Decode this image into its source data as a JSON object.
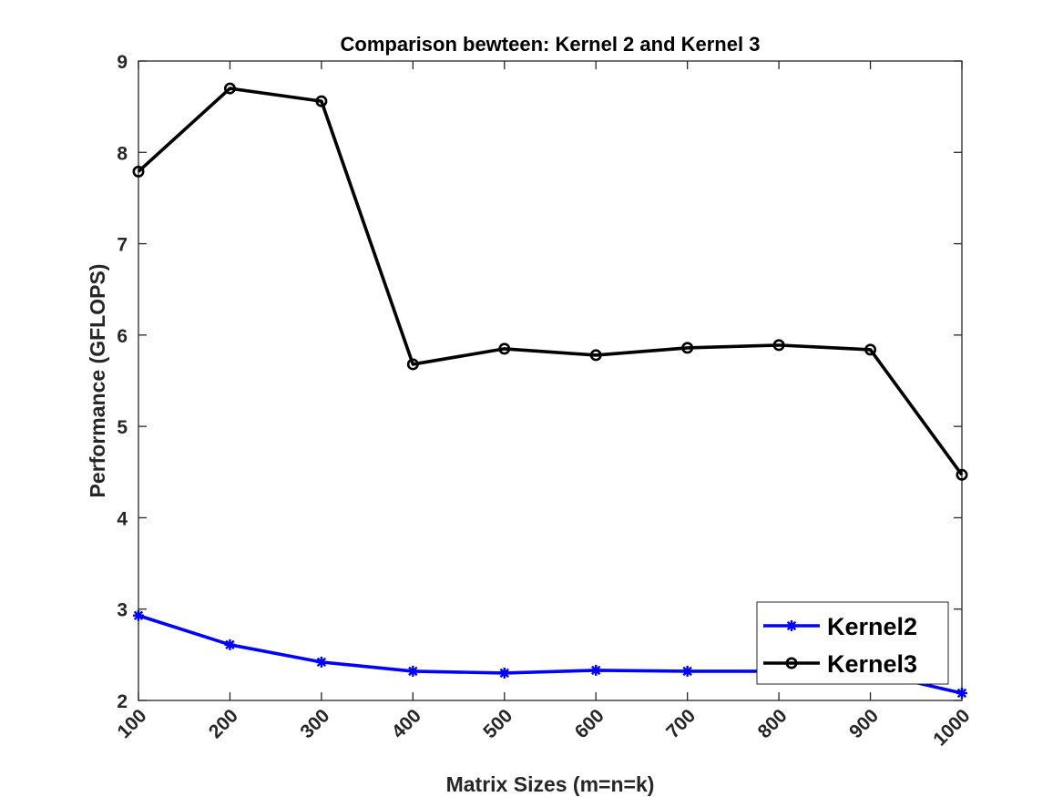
{
  "chart_data": {
    "type": "line",
    "title": "Comparison bewteen: Kernel 2 and Kernel 3",
    "xlabel": "Matrix Sizes (m=n=k)",
    "ylabel": "Performance (GFLOPS)",
    "x": [
      100,
      200,
      300,
      400,
      500,
      600,
      700,
      800,
      900,
      1000
    ],
    "xticks": [
      "100",
      "200",
      "300",
      "400",
      "500",
      "600",
      "700",
      "800",
      "900",
      "1000"
    ],
    "yticks": [
      "2",
      "3",
      "4",
      "5",
      "6",
      "7",
      "8",
      "9"
    ],
    "xlim": [
      100,
      1000
    ],
    "ylim": [
      2,
      9
    ],
    "grid": false,
    "legend_position": "bottom-right",
    "series": [
      {
        "name": "Kernel2",
        "color": "#0000ff",
        "marker": "star",
        "values": [
          2.93,
          2.61,
          2.42,
          2.32,
          2.3,
          2.33,
          2.32,
          2.32,
          2.31,
          2.08
        ]
      },
      {
        "name": "Kernel3",
        "color": "#000000",
        "marker": "circle",
        "values": [
          7.79,
          8.7,
          8.56,
          5.68,
          5.85,
          5.78,
          5.86,
          5.89,
          5.84,
          4.47
        ]
      }
    ]
  }
}
